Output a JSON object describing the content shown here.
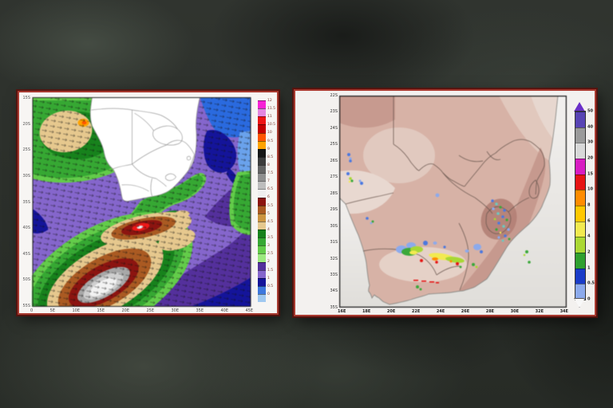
{
  "left_panel": {
    "name": "wave-height-forecast-map",
    "y_axis_labels": [
      "15S",
      "20S",
      "25S",
      "30S",
      "35S",
      "40S",
      "45S",
      "50S",
      "55S"
    ],
    "x_axis_labels": [
      "0",
      "5E",
      "10E",
      "15E",
      "20E",
      "25E",
      "30E",
      "35E",
      "40E",
      "45E"
    ],
    "colorbar": {
      "labels": [
        "12",
        "11.5",
        "11",
        "10.5",
        "10",
        "9.5",
        "9",
        "8.5",
        "8",
        "7.5",
        "7",
        "6.5",
        "6",
        "5.5",
        "5",
        "4.5",
        "4",
        "3.5",
        "3",
        "2.5",
        "2",
        "1.5",
        "1",
        "0.5",
        "0"
      ],
      "cell_colors": [
        "#f722d6",
        "#e387e0",
        "#ee1515",
        "#c40000",
        "#ff5500",
        "#ffa300",
        "#161616",
        "#3c3c3c",
        "#646464",
        "#8f8f8f",
        "#bdbdbd",
        "#efefef",
        "#8c1410",
        "#aa5a22",
        "#cc9440",
        "#e6c88e",
        "#17821c",
        "#36a833",
        "#63cc4a",
        "#9ce87f",
        "#54309c",
        "#8566cc",
        "#14149a",
        "#3f78de",
        "#a0c8f0"
      ]
    }
  },
  "right_panel": {
    "name": "rainfall-forecast-map",
    "y_axis_labels": [
      "22S",
      "23S",
      "24S",
      "25S",
      "26S",
      "27S",
      "28S",
      "29S",
      "30S",
      "31S",
      "32S",
      "33S",
      "34S",
      "35S"
    ],
    "x_axis_labels": [
      "16E",
      "18E",
      "20E",
      "22E",
      "24E",
      "26E",
      "28E",
      "30E",
      "32E",
      "34E"
    ],
    "colorbar": {
      "labels": [
        "50",
        "40",
        "30",
        "20",
        "15",
        "10",
        "8",
        "6",
        "4",
        "2",
        "1",
        "0.5",
        "0"
      ],
      "cell_colors": [
        "#5844b4",
        "#9a9a9a",
        "#d8d8d8",
        "#d81cc2",
        "#e61414",
        "#ff8c00",
        "#ffc800",
        "#f2ea50",
        "#abd834",
        "#2fa02f",
        "#1a3cc8",
        "#8caaec"
      ]
    }
  },
  "palette": {
    "ocean_purple": "#8566cc",
    "ocean_dark_purple": "#54309c",
    "ocean_navy": "#14149a",
    "ocean_blue": "#2a6adf",
    "ocean_light_blue": "#6aa2ec",
    "ocean_green": "#36a833",
    "ocean_light_green": "#63cc4a",
    "ocean_dark_green": "#17821c",
    "wave_tan": "#e6c88e",
    "wave_sienna": "#aa5a22",
    "wave_maroon": "#8c1410",
    "wave_red": "#ee1818",
    "wave_orange": "#ffa300",
    "wave_gray": "#a8a8a8",
    "wave_light_gray": "#cfcfcf",
    "wave_white": "#f2f2f2",
    "land_white": "#ffffff",
    "country_border": "#909090",
    "terrain_base": "#d7b2a6",
    "terrain_dark": "#c09086",
    "terrain_lesotho": "#b28076",
    "terrain_light": "#e8d8d0",
    "terrain_pale": "#e3cdc3",
    "sea_white": "#efedeb",
    "coast_gray": "#8a8a86",
    "province_border": "#6b5850",
    "p_light_blue": "#8caaec",
    "p_blue": "#4a78e0",
    "p_cyan": "#6cc8c0",
    "p_green": "#3aa83a",
    "p_yellow_green": "#a8d834",
    "p_yellow": "#f2ea50",
    "p_orange": "#ff8c00",
    "p_red": "#e61414",
    "cb_arrow_top": "#6a30c8",
    "cb_arrow_bottom": "#f8f8f8"
  }
}
